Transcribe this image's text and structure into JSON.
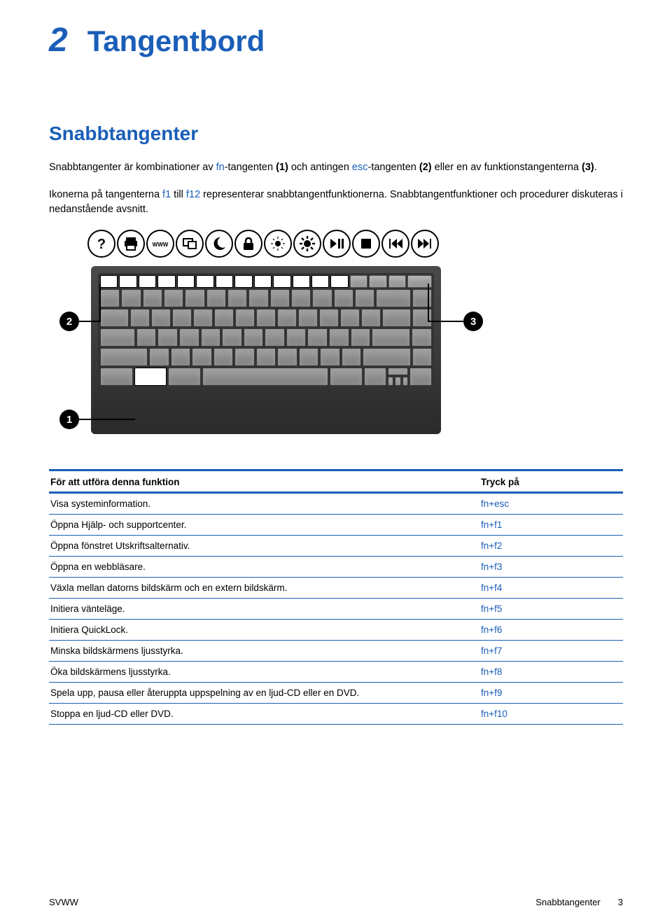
{
  "chapter": {
    "number": "2",
    "title": "Tangentbord"
  },
  "section": {
    "title": "Snabbtangenter"
  },
  "intro": {
    "p1_pre": "Snabbtangenter är kombinationer av ",
    "p1_fn": "fn",
    "p1_mid": "-tangenten ",
    "p1_b1": "(1)",
    "p1_mid2": " och antingen ",
    "p1_esc": "esc",
    "p1_mid3": "-tangenten ",
    "p1_b2": "(2)",
    "p1_mid4": " eller en av funktionstangenterna ",
    "p1_b3": "(3)",
    "p1_end": ".",
    "p2_pre": "Ikonerna på tangenterna ",
    "p2_f1": "f1",
    "p2_till": " till ",
    "p2_f12": "f12",
    "p2_end": " representerar snabbtangentfunktionerna. Snabbtangentfunktioner och procedurer diskuteras i nedanstående avsnitt."
  },
  "figure": {
    "callouts": {
      "c1": "1",
      "c2": "2",
      "c3": "3"
    }
  },
  "table": {
    "header": {
      "col1": "För att utföra denna funktion",
      "col2": "Tryck på"
    },
    "rows": [
      {
        "action": "Visa systeminformation.",
        "key": "fn+esc"
      },
      {
        "action": "Öppna Hjälp- och supportcenter.",
        "key": "fn+f1"
      },
      {
        "action": "Öppna fönstret Utskriftsalternativ.",
        "key": "fn+f2"
      },
      {
        "action": "Öppna en webbläsare.",
        "key": "fn+f3"
      },
      {
        "action": "Växla mellan datorns bildskärm och en extern bildskärm.",
        "key": "fn+f4"
      },
      {
        "action": "Initiera vänteläge.",
        "key": "fn+f5"
      },
      {
        "action": "Initiera QuickLock.",
        "key": "fn+f6"
      },
      {
        "action": "Minska bildskärmens ljusstyrka.",
        "key": "fn+f7"
      },
      {
        "action": "Öka bildskärmens ljusstyrka.",
        "key": "fn+f8"
      },
      {
        "action": "Spela upp, pausa eller återuppta uppspelning av en ljud-CD eller en DVD.",
        "key": "fn+f9"
      },
      {
        "action": "Stoppa en ljud-CD eller DVD.",
        "key": "fn+f10"
      }
    ]
  },
  "footer": {
    "left": "SVWW",
    "section": "Snabbtangenter",
    "page": "3"
  },
  "colors": {
    "accent": "#1a5eb8",
    "text": "#000000",
    "background": "#ffffff"
  }
}
